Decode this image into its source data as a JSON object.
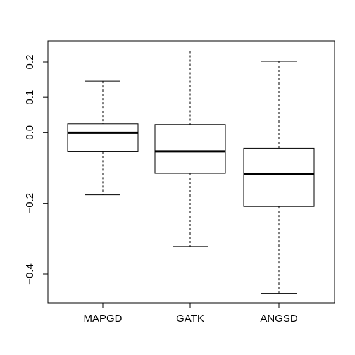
{
  "chart_data": {
    "type": "boxplot",
    "title": "",
    "xlabel": "",
    "ylabel": "",
    "ylim": [
      -0.48,
      0.23
    ],
    "grid": false,
    "categories": [
      "MAPGD",
      "GATK",
      "ANGSD"
    ],
    "y_ticks": [
      -0.4,
      -0.2,
      0.0,
      0.1,
      0.2
    ],
    "y_tick_labels": [
      "−0.4",
      "−0.2",
      "0.0",
      "0.1",
      "0.2"
    ],
    "boxes": [
      {
        "name": "MAPGD",
        "whisker_low": -0.176,
        "q1": -0.054,
        "median": 0.0,
        "q3": 0.025,
        "whisker_high": 0.146
      },
      {
        "name": "GATK",
        "whisker_low": -0.322,
        "q1": -0.115,
        "median": -0.053,
        "q3": 0.023,
        "whisker_high": 0.231
      },
      {
        "name": "ANGSD",
        "whisker_low": -0.455,
        "q1": -0.209,
        "median": -0.116,
        "q3": -0.044,
        "whisker_high": 0.202
      }
    ]
  }
}
